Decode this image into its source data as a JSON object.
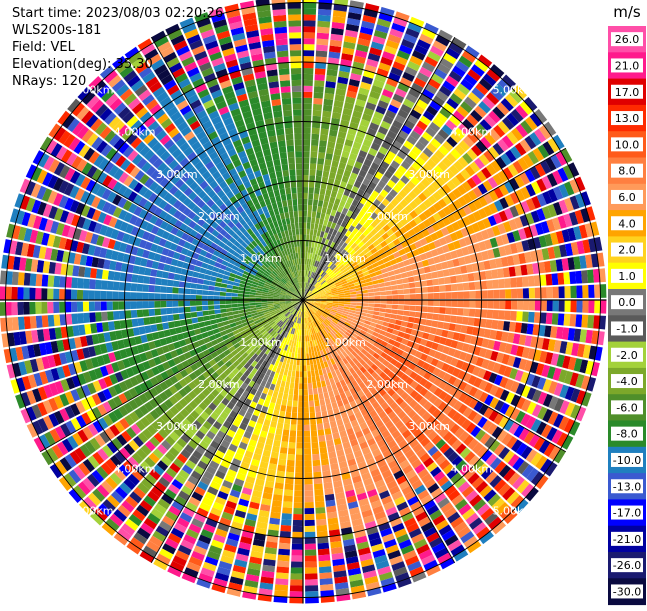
{
  "header": {
    "start_time": "Start time: 2023/08/03 02:20:26",
    "station": "WLS200s-181",
    "field": "Field: VEL",
    "elevation": "Elevation(deg): 35.30",
    "nrays": "NRays: 120"
  },
  "colorbar": {
    "unit": "m/s",
    "ticks": [
      "26.0",
      "21.0",
      "17.0",
      "13.0",
      "10.0",
      "8.0",
      "6.0",
      "4.0",
      "2.0",
      "1.0",
      "0.0",
      "-1.0",
      "-2.0",
      "-4.0",
      "-6.0",
      "-8.0",
      "-10.0",
      "-13.0",
      "-17.0",
      "-21.0",
      "-26.0",
      "-30.0"
    ],
    "colors": [
      "#ff4fa8",
      "#ff1a8c",
      "#e00000",
      "#ff2a00",
      "#ff5a1a",
      "#ff7f40",
      "#ff9a5a",
      "#ffa400",
      "#ffd21e",
      "#ffff00",
      "#787878",
      "#5a5a5a",
      "#a3d13a",
      "#7ca82a",
      "#4f8f2a",
      "#2a8a2a",
      "#1f7fbf",
      "#3a5ad0",
      "#0000ff",
      "#0000a0",
      "#1a1a70",
      "#0a0a40"
    ]
  },
  "chart_data": {
    "type": "heatmap",
    "projection": "polar-ppi",
    "field": "VEL",
    "unit": "m/s",
    "nrays": 120,
    "elevation_deg": 35.3,
    "range_rings_km": [
      1,
      2,
      3,
      4,
      5
    ],
    "range_ring_labels": [
      "1.00km",
      "2.00km",
      "3.00km",
      "4.00km",
      "5.00km"
    ],
    "max_range_km": 5.1,
    "spokes": 12,
    "velocity_bins": [
      -30,
      -26,
      -21,
      -17,
      -13,
      -10,
      -8,
      -6,
      -4,
      -2,
      -1,
      0,
      1,
      2,
      4,
      6,
      8,
      10,
      13,
      17,
      21,
      26,
      30
    ],
    "pattern": {
      "description_free": true,
      "max_velocity": 10,
      "zero_direction_deg": 300,
      "noise_start_km": 3.3
    }
  }
}
